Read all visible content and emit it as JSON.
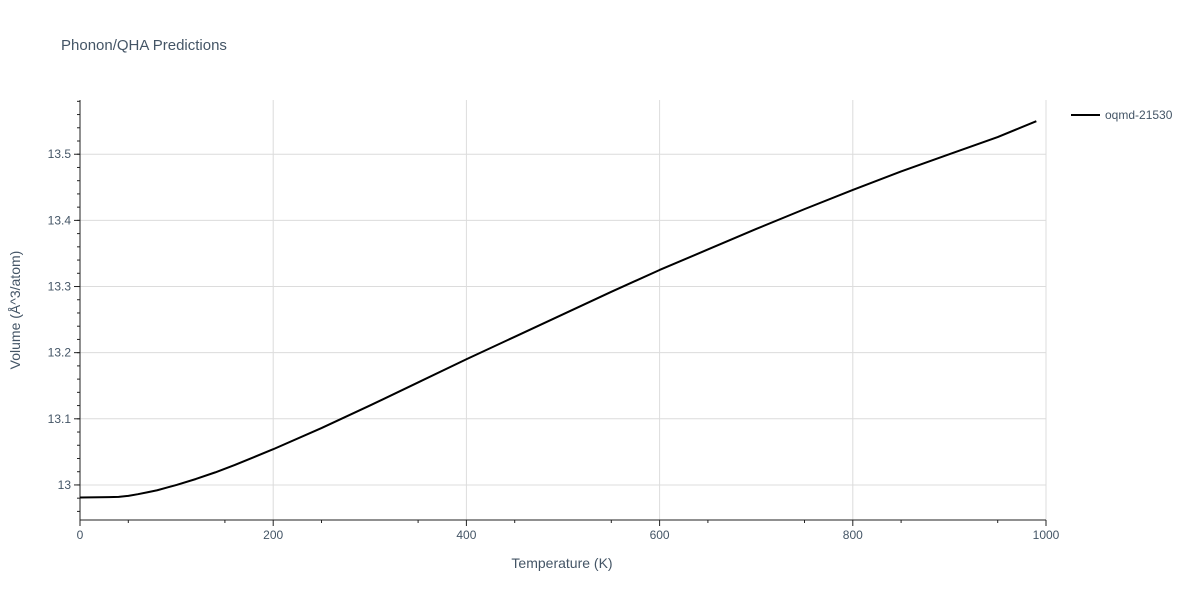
{
  "chart_data": {
    "type": "line",
    "title": "Phonon/QHA Predictions",
    "xlabel": "Temperature (K)",
    "ylabel": "Volume (Å^3/atom)",
    "xlim": [
      0,
      1000
    ],
    "ylim": [
      12.947,
      13.582
    ],
    "x_ticks": [
      "0",
      "200",
      "400",
      "600",
      "800",
      "1000"
    ],
    "y_ticks": [
      "13",
      "13.1",
      "13.2",
      "13.3",
      "13.4",
      "13.5"
    ],
    "grid": true,
    "legend_position": "top-right",
    "series": [
      {
        "name": "oqmd-21530",
        "color": "#000000",
        "x": [
          0,
          10,
          20,
          30,
          40,
          50,
          60,
          70,
          80,
          90,
          100,
          120,
          140,
          160,
          180,
          200,
          250,
          300,
          350,
          400,
          450,
          500,
          550,
          600,
          650,
          700,
          750,
          800,
          850,
          900,
          950,
          990
        ],
        "y": [
          12.981,
          12.9812,
          12.9813,
          12.9815,
          12.982,
          12.9835,
          12.986,
          12.989,
          12.992,
          12.996,
          13.0,
          13.009,
          13.019,
          13.03,
          13.042,
          13.054,
          13.086,
          13.12,
          13.155,
          13.19,
          13.224,
          13.258,
          13.292,
          13.325,
          13.356,
          13.387,
          13.417,
          13.446,
          13.474,
          13.5,
          13.526,
          13.55
        ]
      }
    ]
  }
}
